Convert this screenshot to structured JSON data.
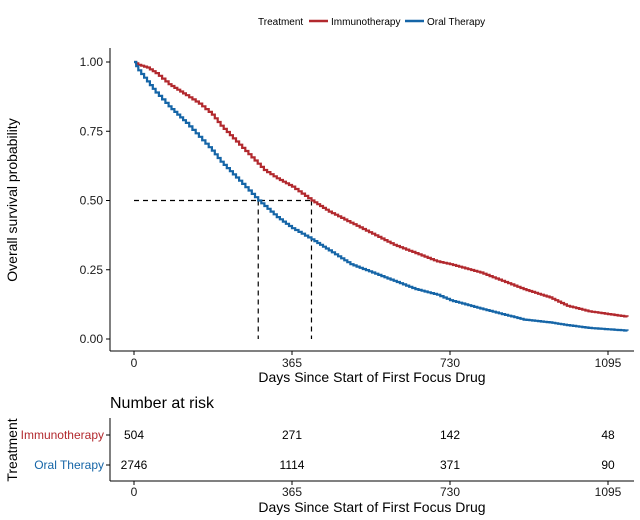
{
  "chart_data": {
    "type": "line",
    "legend": {
      "title": "Treatment",
      "position": "top"
    },
    "xlabel": "Days Since Start of First Focus Drug",
    "ylabel": "Overall survival probability",
    "xlim": [
      0,
      1140
    ],
    "ylim": [
      0,
      1
    ],
    "x_ticks": [
      0,
      365,
      730,
      1095
    ],
    "y_ticks": [
      0.0,
      0.25,
      0.5,
      0.75,
      1.0
    ],
    "y_tick_labels": [
      "0.00",
      "0.25",
      "0.50",
      "0.75",
      "1.00"
    ],
    "grid": false,
    "median_line_y": 0.5,
    "median_x": [
      287,
      410
    ],
    "series": [
      {
        "name": "Immunotherapy",
        "color": "#b2292e",
        "x": [
          0,
          10,
          30,
          50,
          80,
          100,
          120,
          150,
          180,
          200,
          250,
          300,
          330,
          365,
          410,
          450,
          500,
          550,
          600,
          650,
          700,
          730,
          800,
          850,
          900,
          960,
          1000,
          1050,
          1095,
          1140
        ],
        "y": [
          1.0,
          0.99,
          0.98,
          0.96,
          0.92,
          0.9,
          0.88,
          0.85,
          0.81,
          0.77,
          0.69,
          0.61,
          0.58,
          0.55,
          0.5,
          0.46,
          0.42,
          0.38,
          0.34,
          0.31,
          0.28,
          0.27,
          0.24,
          0.21,
          0.18,
          0.15,
          0.12,
          0.1,
          0.09,
          0.08
        ]
      },
      {
        "name": "Oral Therapy",
        "color": "#1565a7",
        "x": [
          0,
          10,
          30,
          50,
          80,
          100,
          120,
          150,
          180,
          200,
          250,
          287,
          330,
          365,
          410,
          450,
          500,
          550,
          600,
          650,
          700,
          730,
          800,
          850,
          900,
          960,
          1000,
          1050,
          1095,
          1140
        ],
        "y": [
          1.0,
          0.97,
          0.93,
          0.89,
          0.84,
          0.81,
          0.78,
          0.73,
          0.68,
          0.64,
          0.56,
          0.5,
          0.44,
          0.4,
          0.36,
          0.32,
          0.27,
          0.24,
          0.21,
          0.18,
          0.16,
          0.14,
          0.11,
          0.09,
          0.07,
          0.06,
          0.05,
          0.04,
          0.035,
          0.03
        ]
      }
    ]
  },
  "risk_table": {
    "title": "Number at risk",
    "ylabel": "Treatment",
    "xlabel": "Days Since Start of First Focus Drug",
    "x_ticks": [
      0,
      365,
      730,
      1095
    ],
    "rows": [
      {
        "name": "Immunotherapy",
        "color": "#b2292e",
        "values": [
          "504",
          "271",
          "142",
          "48"
        ]
      },
      {
        "name": "Oral Therapy",
        "color": "#1565a7",
        "values": [
          "2746",
          "1114",
          "371",
          "90"
        ]
      }
    ]
  }
}
